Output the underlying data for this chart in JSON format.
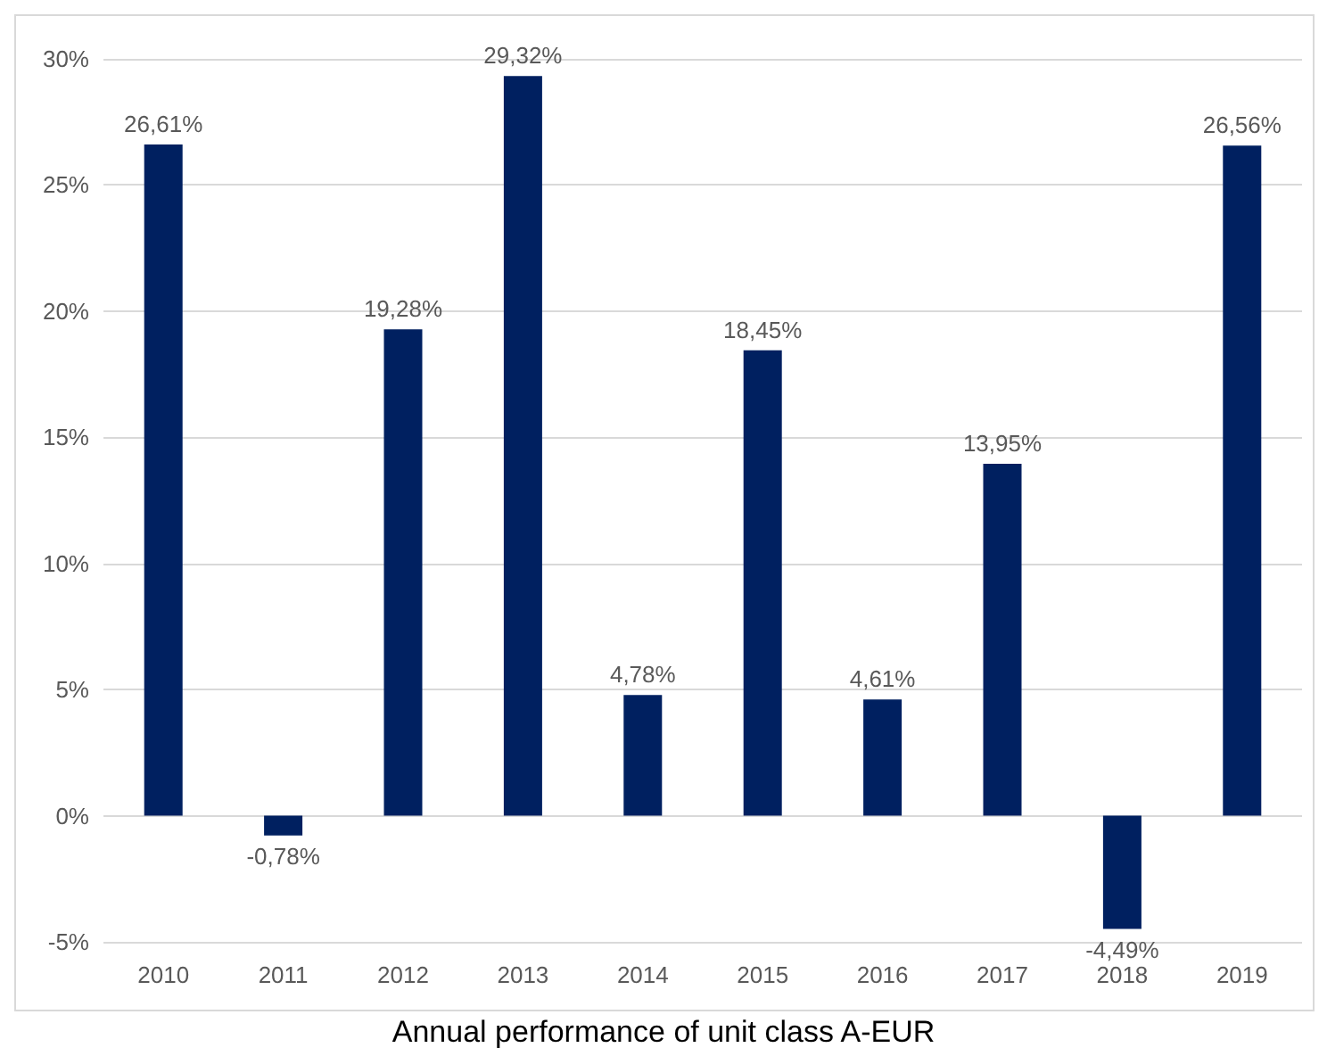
{
  "chart_data": {
    "type": "bar",
    "title": "Annual performance of unit class A-EUR",
    "categories": [
      "2010",
      "2011",
      "2012",
      "2013",
      "2014",
      "2015",
      "2016",
      "2017",
      "2018",
      "2019"
    ],
    "values": [
      26.61,
      -0.78,
      19.28,
      29.32,
      4.78,
      18.45,
      4.61,
      13.95,
      -4.49,
      26.56
    ],
    "value_labels": [
      "26,61%",
      "-0,78%",
      "19,28%",
      "29,32%",
      "4,78%",
      "18,45%",
      "4,61%",
      "13,95%",
      "-4,49%",
      "26,56%"
    ],
    "color": "#002060",
    "ylim": [
      -5,
      30
    ],
    "yticks": [
      {
        "value": -5,
        "label": "-5%"
      },
      {
        "value": 0,
        "label": "0%"
      },
      {
        "value": 5,
        "label": "5%"
      },
      {
        "value": 10,
        "label": "10%"
      },
      {
        "value": 15,
        "label": "15%"
      },
      {
        "value": 20,
        "label": "20%"
      },
      {
        "value": 25,
        "label": "25%"
      },
      {
        "value": 30,
        "label": "30%"
      }
    ],
    "grid": "y"
  }
}
